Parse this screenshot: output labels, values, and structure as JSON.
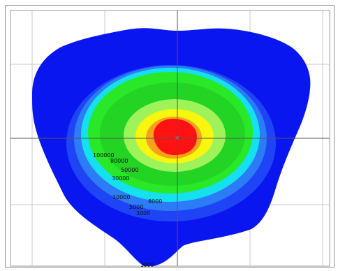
{
  "plot": {
    "center_marker": "×",
    "colors": {
      "outermost": "#0a16f0",
      "deep_blue": "#1f44f5",
      "mid_blue": "#2b7cf6",
      "cyan": "#14e0f0",
      "light_green": "#28e828",
      "green": "#24d424",
      "yellow_green": "#9ef25a",
      "yellow": "#f6f60e",
      "orange": "#f7a21a",
      "red": "#ff1212",
      "grid": "#bdbdbd",
      "crosshair": "#555555"
    },
    "contour_labels": [
      "100000",
      "80000",
      "50000",
      "30000",
      "10000",
      "8000",
      "5000",
      "3000",
      "1000"
    ]
  }
}
